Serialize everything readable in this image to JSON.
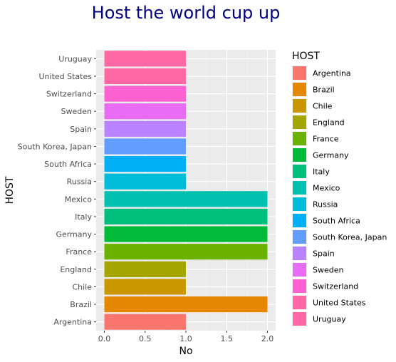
{
  "chart_data": {
    "type": "bar",
    "orientation": "horizontal",
    "title": "Host the world cup up",
    "xlabel": "No",
    "ylabel": "HOST",
    "xlim": [
      0,
      2
    ],
    "x_ticks": [
      "0.0",
      "0.5",
      "1.0",
      "1.5",
      "2.0"
    ],
    "grid": true,
    "legend_title": "HOST",
    "legend_position": "right",
    "categories": [
      "Argentina",
      "Brazil",
      "Chile",
      "England",
      "France",
      "Germany",
      "Italy",
      "Mexico",
      "Russia",
      "South Africa",
      "South Korea, Japan",
      "Spain",
      "Sweden",
      "Switzerland",
      "United States",
      "Uruguay"
    ],
    "values": [
      1,
      2,
      1,
      1,
      2,
      2,
      2,
      2,
      1,
      1,
      1,
      1,
      1,
      1,
      1,
      1
    ],
    "colors": [
      "#F8766D",
      "#E58700",
      "#C99800",
      "#A3A500",
      "#6BB100",
      "#00BA38",
      "#00BF7D",
      "#00C0AF",
      "#00BCD8",
      "#00B0F6",
      "#619CFF",
      "#B983FF",
      "#E76BF3",
      "#FD61D1",
      "#FF67A4",
      "#FF67A4"
    ]
  }
}
